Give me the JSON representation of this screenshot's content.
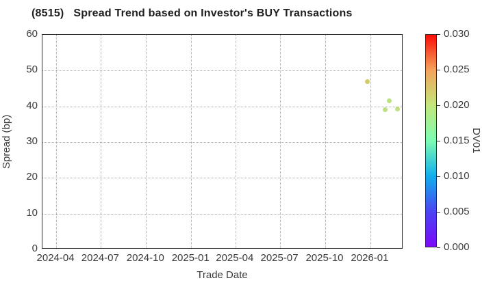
{
  "title": "(8515)   Spread Trend based on Investor's BUY Transactions",
  "chart_data": {
    "type": "scatter",
    "title": "(8515)   Spread Trend based on Investor's BUY Transactions",
    "xlabel": "Trade Date",
    "ylabel": "Spread (bp)",
    "ylim": [
      0,
      60
    ],
    "y_ticks": [
      0,
      10,
      20,
      30,
      40,
      50,
      60
    ],
    "x_tick_labels": [
      "2024-04",
      "2024-07",
      "2024-10",
      "2025-01",
      "2025-04",
      "2025-07",
      "2025-10",
      "2026-01"
    ],
    "x_tick_dates": [
      "2024-04-01",
      "2024-07-01",
      "2024-10-01",
      "2025-01-01",
      "2025-04-01",
      "2025-07-01",
      "2025-10-01",
      "2026-01-01"
    ],
    "x_domain": [
      "2024-03-04",
      "2026-03-09"
    ],
    "grid": true,
    "points": [
      {
        "date": "2025-12-26",
        "spread": 47.0,
        "dv01": 0.02,
        "color": "#d3cb63"
      },
      {
        "date": "2026-01-31",
        "spread": 39.0,
        "dv01": 0.019,
        "color": "#bce180"
      },
      {
        "date": "2026-02-08",
        "spread": 41.6,
        "dv01": 0.019,
        "color": "#bce180"
      },
      {
        "date": "2026-02-25",
        "spread": 39.2,
        "dv01": 0.019,
        "color": "#bce180"
      }
    ],
    "colorbar": {
      "label": "DV01",
      "min": 0.0,
      "max": 0.03,
      "tick_labels": [
        "0.000",
        "0.005",
        "0.010",
        "0.015",
        "0.020",
        "0.025",
        "0.030"
      ],
      "tick_values": [
        0.0,
        0.005,
        0.01,
        0.015,
        0.02,
        0.025,
        0.03
      ],
      "gradient_bottom_to_top": [
        "#7b09f9",
        "#4b45f2",
        "#10afec",
        "#7efcb3",
        "#c3e77c",
        "#f4a35b",
        "#fb0d07"
      ]
    }
  }
}
